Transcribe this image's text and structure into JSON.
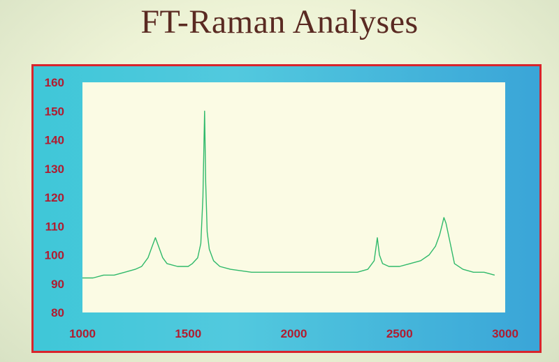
{
  "title": "FT-Raman Analyses",
  "colors": {
    "frame": "#d8242c",
    "outer_bg": "#4cc6dc",
    "plot_bg": "#fbfbe4",
    "series": "#2fb96a",
    "tick_labels": "#b01c30"
  },
  "chart_data": {
    "type": "line",
    "title": "",
    "xlabel": "",
    "ylabel": "",
    "xlim": [
      1000,
      3000
    ],
    "ylim": [
      80,
      160
    ],
    "x_ticks": [
      "1000",
      "1500",
      "2000",
      "2500",
      "3000"
    ],
    "y_ticks": [
      "80",
      "90",
      "100",
      "110",
      "120",
      "130",
      "140",
      "150",
      "160"
    ],
    "grid": false,
    "legend": "none",
    "series": [
      {
        "x": [
          1000,
          1050,
          1100,
          1150,
          1200,
          1250,
          1280,
          1310,
          1330,
          1345,
          1360,
          1380,
          1400,
          1450,
          1500,
          1520,
          1545,
          1560,
          1570,
          1578,
          1583,
          1590,
          1600,
          1620,
          1650,
          1700,
          1800,
          1900,
          2000,
          2100,
          2200,
          2300,
          2350,
          2380,
          2395,
          2405,
          2420,
          2450,
          2500,
          2550,
          2600,
          2640,
          2670,
          2690,
          2700,
          2710,
          2720,
          2740,
          2760,
          2800,
          2850,
          2900,
          2950
        ],
        "y": [
          92,
          92,
          93,
          93,
          94,
          95,
          96,
          99,
          103,
          106,
          103,
          99,
          97,
          96,
          96,
          97,
          99,
          104,
          120,
          150,
          125,
          108,
          102,
          98,
          96,
          95,
          94,
          94,
          94,
          94,
          94,
          94,
          95,
          98,
          106,
          100,
          97,
          96,
          96,
          97,
          98,
          100,
          103,
          107,
          110,
          113,
          111,
          104,
          97,
          95,
          94,
          94,
          93
        ]
      }
    ]
  }
}
